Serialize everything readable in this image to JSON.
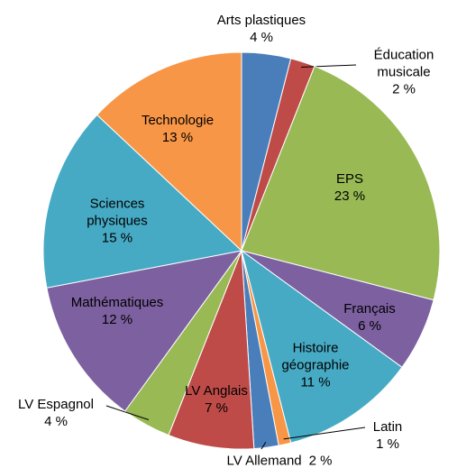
{
  "chart_data": {
    "type": "pie",
    "categories": [
      "Arts plastiques",
      "Éducation musicale",
      "EPS",
      "Français",
      "Histoire géographie",
      "Latin",
      "LV Allemand",
      "LV Anglais",
      "LV Espagnol",
      "Mathématiques",
      "Sciences physiques",
      "Technologie"
    ],
    "values": [
      4,
      2,
      23,
      6,
      11,
      1,
      2,
      7,
      4,
      12,
      15,
      13
    ],
    "value_labels": [
      "4 %",
      "2 %",
      "23 %",
      "6 %",
      "11 %",
      "1 %",
      "2 %",
      "7 %",
      "4 %",
      "12 %",
      "15 %",
      "13 %"
    ],
    "colors": [
      "#4a7ebb",
      "#be4b48",
      "#98b954",
      "#7d60a0",
      "#46aac5",
      "#f79646",
      "#4a7ebb",
      "#be4b48",
      "#98b954",
      "#7d60a0",
      "#46aac5",
      "#f79646"
    ]
  }
}
